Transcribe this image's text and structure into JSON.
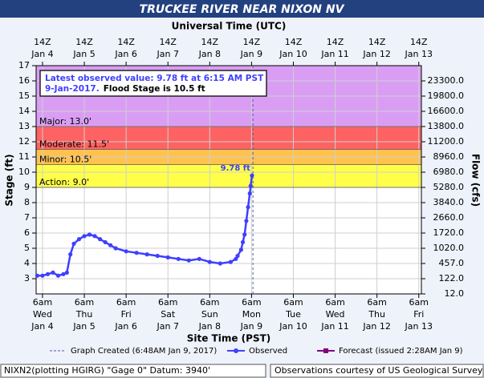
{
  "chart_data": {
    "type": "hydrograph",
    "title": "TRUCKEE RIVER NEAR NIXON NV",
    "top_axis_label": "Universal Time (UTC)",
    "xlabel": "Site Time (PST)",
    "ylabel": "Stage (ft)",
    "y2label": "Flow (cfs)",
    "xlim": [
      "Jan 4 02:20",
      "Jan 13 07:30"
    ],
    "ylim": [
      2,
      17
    ],
    "yticks": [
      3,
      4,
      5,
      6,
      7,
      8,
      9,
      10,
      11,
      12,
      13,
      14,
      15,
      16,
      17
    ],
    "y2ticks": [
      {
        "value": 12,
        "label": "12.0",
        "stage": 2
      },
      {
        "value": 122,
        "label": "122.0",
        "stage": 3
      },
      {
        "value": 457,
        "label": "457.0",
        "stage": 4
      },
      {
        "value": 1020,
        "label": "1020.0",
        "stage": 5
      },
      {
        "value": 1720,
        "label": "1720.0",
        "stage": 6
      },
      {
        "value": 2660,
        "label": "2660.0",
        "stage": 7
      },
      {
        "value": 3840,
        "label": "3840.0",
        "stage": 8
      },
      {
        "value": 5280,
        "label": "5280.0",
        "stage": 9
      },
      {
        "value": 6980,
        "label": "6980.0",
        "stage": 10
      },
      {
        "value": 8960,
        "label": "8960.0",
        "stage": 11
      },
      {
        "value": 11200,
        "label": "11200.0",
        "stage": 12
      },
      {
        "value": 13800,
        "label": "13800.0",
        "stage": 13
      },
      {
        "value": 16600,
        "label": "16600.0",
        "stage": 14
      },
      {
        "value": 19800,
        "label": "19800.0",
        "stage": 15
      },
      {
        "value": 23300,
        "label": "23300.0",
        "stage": 16
      }
    ],
    "xticks": [
      {
        "value": "Jan 4 06:00",
        "label": [
          "6am",
          "Wed",
          "Jan 4"
        ]
      },
      {
        "value": "Jan 5 06:00",
        "label": [
          "6am",
          "Thu",
          "Jan 5"
        ]
      },
      {
        "value": "Jan 6 06:00",
        "label": [
          "6am",
          "Fri",
          "Jan 6"
        ]
      },
      {
        "value": "Jan 7 06:00",
        "label": [
          "6am",
          "Sat",
          "Jan 7"
        ]
      },
      {
        "value": "Jan 8 06:00",
        "label": [
          "6am",
          "Sun",
          "Jan 8"
        ]
      },
      {
        "value": "Jan 9 06:00",
        "label": [
          "6am",
          "Mon",
          "Jan 9"
        ]
      },
      {
        "value": "Jan 10 06:00",
        "label": [
          "6am",
          "Tue",
          "Jan 10"
        ]
      },
      {
        "value": "Jan 11 06:00",
        "label": [
          "6am",
          "Wed",
          "Jan 11"
        ]
      },
      {
        "value": "Jan 12 06:00",
        "label": [
          "6am",
          "Thu",
          "Jan 12"
        ]
      },
      {
        "value": "Jan 13 06:00",
        "label": [
          "6am",
          "Fri",
          "Jan 13"
        ]
      }
    ],
    "x2ticks": [
      {
        "value": "Jan 4 06:00",
        "label": [
          "14Z",
          "Jan 4"
        ]
      },
      {
        "value": "Jan 5 06:00",
        "label": [
          "14Z",
          "Jan 5"
        ]
      },
      {
        "value": "Jan 6 06:00",
        "label": [
          "14Z",
          "Jan 6"
        ]
      },
      {
        "value": "Jan 7 06:00",
        "label": [
          "14Z",
          "Jan 7"
        ]
      },
      {
        "value": "Jan 8 06:00",
        "label": [
          "14Z",
          "Jan 8"
        ]
      },
      {
        "value": "Jan 9 06:00",
        "label": [
          "14Z",
          "Jan 9"
        ]
      },
      {
        "value": "Jan 10 06:00",
        "label": [
          "14Z",
          "Jan 10"
        ]
      },
      {
        "value": "Jan 11 06:00",
        "label": [
          "14Z",
          "Jan 11"
        ]
      },
      {
        "value": "Jan 12 06:00",
        "label": [
          "14Z",
          "Jan 12"
        ]
      },
      {
        "value": "Jan 13 06:00",
        "label": [
          "14Z",
          "Jan 13"
        ]
      }
    ],
    "grid": true,
    "flood_categories": [
      {
        "label": "Action: 9.0'",
        "value": 9,
        "color": "#ffff4a"
      },
      {
        "label": "Minor: 10.5'",
        "value": 10.5,
        "color": "#ffc24f"
      },
      {
        "label": "Moderate: 11.5'",
        "value": 11.5,
        "color": "#ff6262"
      },
      {
        "label": "Major: 13.0'",
        "value": 13,
        "color": "#d99ef4"
      }
    ],
    "series": [
      {
        "name": "Observed",
        "color": "#3f3fff",
        "x": [
          "Jan 4 03:00",
          "Jan 4 06:00",
          "Jan 4 09:00",
          "Jan 4 12:00",
          "Jan 4 15:00",
          "Jan 4 18:00",
          "Jan 4 20:00",
          "Jan 4 22:00",
          "Jan 5 00:00",
          "Jan 5 03:00",
          "Jan 5 06:00",
          "Jan 5 09:00",
          "Jan 5 12:00",
          "Jan 5 15:00",
          "Jan 5 18:00",
          "Jan 5 21:00",
          "Jan 6 00:00",
          "Jan 6 06:00",
          "Jan 6 12:00",
          "Jan 6 18:00",
          "Jan 7 00:00",
          "Jan 7 06:00",
          "Jan 7 12:00",
          "Jan 7 18:00",
          "Jan 8 00:00",
          "Jan 8 06:00",
          "Jan 8 12:00",
          "Jan 8 18:00",
          "Jan 8 21:00",
          "Jan 8 22:00",
          "Jan 9 00:00",
          "Jan 9 01:00",
          "Jan 9 02:00",
          "Jan 9 03:00",
          "Jan 9 04:00",
          "Jan 9 05:00",
          "Jan 9 05:30",
          "Jan 9 06:15"
        ],
        "values": [
          3.2,
          3.2,
          3.3,
          3.4,
          3.2,
          3.3,
          3.4,
          4.6,
          5.3,
          5.6,
          5.8,
          5.9,
          5.8,
          5.6,
          5.4,
          5.2,
          5.0,
          4.8,
          4.7,
          4.6,
          4.5,
          4.4,
          4.3,
          4.2,
          4.3,
          4.1,
          4.0,
          4.1,
          4.3,
          4.5,
          4.9,
          5.4,
          5.9,
          6.8,
          7.7,
          8.6,
          9.1,
          9.78
        ]
      },
      {
        "name": "Forecast (issued 2:28AM Jan 9)",
        "color": "#800080",
        "x": [],
        "values": []
      }
    ],
    "latest_label": "9.78 ft",
    "annotation": {
      "text": "Latest observed value: 9.78 ft at 6:15 AM PST 9-Jan-2017.",
      "flood_text": "Flood Stage is 10.5 ft"
    },
    "graph_created": {
      "x": "Jan 9 06:48",
      "label": "Graph Created (6:48AM Jan 9, 2017)"
    },
    "footer_left": "NIXN2(plotting HGIRG) \"Gage 0\" Datum: 3940'",
    "footer_right": "Observations courtesy of US Geological Survey"
  }
}
